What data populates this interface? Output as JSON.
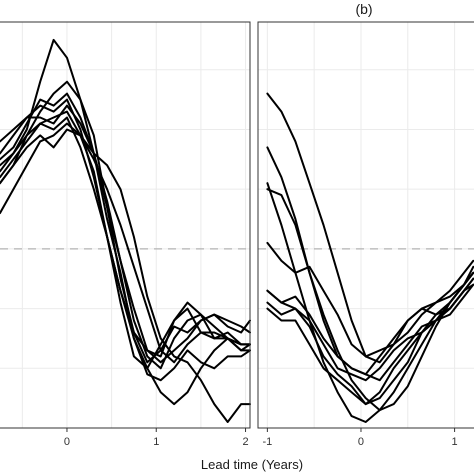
{
  "chart_data": [
    {
      "type": "line",
      "panel_label": "",
      "xlabel": "",
      "x_ticks": [
        0,
        1,
        2
      ],
      "x_tick_labels": [
        "0",
        "1",
        "2"
      ],
      "xlim": [
        -0.75,
        2.05
      ],
      "ylim": [
        -1.5,
        1.9
      ],
      "y_ticks": [],
      "grid": true,
      "reference_line_y": 0,
      "series": [
        {
          "x": [
            -0.75,
            -0.6,
            -0.45,
            -0.3,
            -0.15,
            0,
            0.15,
            0.3,
            0.45,
            0.6,
            0.75,
            0.9,
            1.05,
            1.2,
            1.35,
            1.5,
            1.65,
            1.8,
            1.95,
            2.05
          ],
          "y": [
            0.55,
            0.7,
            0.95,
            1.15,
            1.3,
            1.4,
            1.25,
            0.95,
            0.35,
            -0.25,
            -0.7,
            -0.95,
            -0.85,
            -0.65,
            -0.7,
            -0.6,
            -0.55,
            -0.65,
            -0.7,
            -0.6
          ]
        },
        {
          "x": [
            -0.75,
            -0.6,
            -0.45,
            -0.3,
            -0.15,
            0,
            0.15,
            0.3,
            0.45,
            0.6,
            0.75,
            0.9,
            1.05,
            1.2,
            1.35,
            1.5,
            1.65,
            1.8,
            1.95,
            2.05
          ],
          "y": [
            0.7,
            0.8,
            1.0,
            1.4,
            1.75,
            1.6,
            1.25,
            0.8,
            0.25,
            -0.2,
            -0.75,
            -1.05,
            -1.1,
            -1.0,
            -0.85,
            -0.95,
            -1.0,
            -0.9,
            -0.9,
            -0.85
          ]
        },
        {
          "x": [
            -0.75,
            -0.6,
            -0.45,
            -0.3,
            -0.15,
            0,
            0.15,
            0.3,
            0.45,
            0.6,
            0.75,
            0.9,
            1.05,
            1.2,
            1.35,
            1.5,
            1.65,
            1.8,
            1.95,
            2.05
          ],
          "y": [
            0.75,
            0.85,
            1.05,
            1.25,
            1.2,
            1.3,
            1.1,
            0.8,
            0.35,
            -0.1,
            -0.5,
            -0.85,
            -0.9,
            -0.6,
            -0.45,
            -0.55,
            -0.75,
            -0.7,
            -0.8,
            -0.8
          ]
        },
        {
          "x": [
            -0.75,
            -0.6,
            -0.45,
            -0.3,
            -0.15,
            0,
            0.15,
            0.3,
            0.45,
            0.6,
            0.75,
            0.9,
            1.05,
            1.2,
            1.35,
            1.5,
            1.65,
            1.8,
            1.95,
            2.05
          ],
          "y": [
            0.8,
            0.95,
            1.1,
            1.2,
            1.15,
            1.25,
            1.0,
            0.6,
            0.1,
            -0.45,
            -0.9,
            -1.0,
            -0.8,
            -0.6,
            -0.5,
            -0.7,
            -0.75,
            -0.75,
            -0.85,
            -0.8
          ]
        },
        {
          "x": [
            -0.75,
            -0.6,
            -0.45,
            -0.3,
            -0.15,
            0,
            0.15,
            0.3,
            0.45,
            0.6,
            0.75,
            0.9,
            1.05,
            1.2,
            1.35,
            1.5,
            1.65,
            1.8,
            1.95,
            2.05
          ],
          "y": [
            0.65,
            0.8,
            0.95,
            1.05,
            1.0,
            1.1,
            0.85,
            0.5,
            0.1,
            -0.35,
            -0.75,
            -1.0,
            -1.2,
            -1.3,
            -1.2,
            -1.0,
            -0.85,
            -0.75,
            -0.8,
            -0.8
          ]
        },
        {
          "x": [
            -0.75,
            -0.6,
            -0.45,
            -0.3,
            -0.15,
            0,
            0.15,
            0.3,
            0.45,
            0.6,
            0.75,
            0.9,
            1.05,
            1.2,
            1.35,
            1.5,
            1.65,
            1.8,
            1.95,
            2.05
          ],
          "y": [
            0.3,
            0.5,
            0.7,
            0.9,
            0.95,
            1.05,
            0.95,
            0.75,
            0.5,
            0.2,
            -0.15,
            -0.5,
            -0.85,
            -0.95,
            -0.8,
            -0.7,
            -0.7,
            -0.75,
            -0.8,
            -0.8
          ]
        },
        {
          "x": [
            -0.75,
            -0.6,
            -0.45,
            -0.3,
            -0.15,
            0,
            0.15,
            0.3,
            0.45,
            0.6,
            0.75,
            0.9,
            1.05,
            1.2,
            1.35,
            1.5,
            1.65,
            1.8,
            1.95,
            2.05
          ],
          "y": [
            0.6,
            0.75,
            0.9,
            1.05,
            1.1,
            1.15,
            0.95,
            0.65,
            0.1,
            -0.35,
            -0.7,
            -0.85,
            -0.95,
            -0.85,
            -0.75,
            -0.6,
            -0.55,
            -0.6,
            -0.65,
            -0.7
          ]
        },
        {
          "x": [
            -0.75,
            -0.6,
            -0.45,
            -0.3,
            -0.15,
            0,
            0.15,
            0.3,
            0.45,
            0.6,
            0.75,
            0.9,
            1.05,
            1.2,
            1.35,
            1.5,
            1.65,
            1.8,
            1.95,
            2.05
          ],
          "y": [
            0.55,
            0.7,
            0.85,
            0.95,
            0.85,
            1.0,
            0.95,
            0.8,
            0.7,
            0.5,
            0.1,
            -0.4,
            -0.75,
            -0.9,
            -0.95,
            -1.1,
            -1.3,
            -1.45,
            -1.3,
            -1.3
          ]
        },
        {
          "x": [
            -0.75,
            -0.6,
            -0.45,
            -0.3,
            -0.15,
            0,
            0.15,
            0.3,
            0.45,
            0.6,
            0.75,
            0.9,
            1.05,
            1.2,
            1.35,
            1.5,
            1.65,
            1.8,
            1.95,
            2.05
          ],
          "y": [
            0.9,
            1.0,
            1.1,
            1.1,
            1.05,
            1.2,
            1.05,
            0.8,
            0.4,
            -0.1,
            -0.6,
            -0.9,
            -1.0,
            -0.75,
            -0.6,
            -0.55,
            -0.65,
            -0.75,
            -0.85,
            -0.85
          ]
        }
      ]
    },
    {
      "type": "line",
      "panel_label": "(b)",
      "xlabel": "Lead time (Years)",
      "x_ticks": [
        -1,
        0,
        1
      ],
      "x_tick_labels": [
        "-1",
        "0",
        "1"
      ],
      "xlim": [
        -1.1,
        1.25
      ],
      "ylim": [
        -1.5,
        1.9
      ],
      "y_ticks": [],
      "grid": true,
      "reference_line_y": 0,
      "series": [
        {
          "x": [
            -1,
            -0.85,
            -0.7,
            -0.55,
            -0.4,
            -0.25,
            -0.1,
            0.05,
            0.2,
            0.35,
            0.5,
            0.65,
            0.8,
            0.95,
            1.1,
            1.2
          ],
          "y": [
            1.3,
            1.15,
            0.9,
            0.55,
            0.2,
            -0.2,
            -0.6,
            -0.9,
            -0.95,
            -0.8,
            -0.6,
            -0.5,
            -0.45,
            -0.35,
            -0.2,
            -0.1
          ]
        },
        {
          "x": [
            -1,
            -0.85,
            -0.7,
            -0.55,
            -0.4,
            -0.25,
            -0.1,
            0.05,
            0.2,
            0.35,
            0.5,
            0.65,
            0.8,
            0.95,
            1.1,
            1.2
          ],
          "y": [
            0.5,
            0.45,
            0.2,
            -0.2,
            -0.6,
            -0.9,
            -1.0,
            -1.05,
            -0.9,
            -0.75,
            -0.6,
            -0.5,
            -0.55,
            -0.5,
            -0.35,
            -0.3
          ]
        },
        {
          "x": [
            -1,
            -0.85,
            -0.7,
            -0.55,
            -0.4,
            -0.25,
            -0.1,
            0.05,
            0.2,
            0.35,
            0.5,
            0.65,
            0.8,
            0.95,
            1.1,
            1.2
          ],
          "y": [
            0.05,
            -0.1,
            -0.2,
            -0.15,
            -0.35,
            -0.55,
            -0.8,
            -0.9,
            -0.85,
            -0.8,
            -0.7,
            -0.55,
            -0.45,
            -0.4,
            -0.3,
            -0.2
          ]
        },
        {
          "x": [
            -1,
            -0.85,
            -0.7,
            -0.55,
            -0.4,
            -0.25,
            -0.1,
            0.05,
            0.2,
            0.35,
            0.5,
            0.65,
            0.8,
            0.95,
            1.1,
            1.2
          ],
          "y": [
            -0.35,
            -0.45,
            -0.5,
            -0.6,
            -0.8,
            -1.0,
            -1.05,
            -1.1,
            -1.0,
            -0.85,
            -0.75,
            -0.7,
            -0.6,
            -0.5,
            -0.35,
            -0.25
          ]
        },
        {
          "x": [
            -1,
            -0.85,
            -0.7,
            -0.55,
            -0.4,
            -0.25,
            -0.1,
            0.05,
            0.2,
            0.35,
            0.5,
            0.65,
            0.8,
            0.95,
            1.1,
            1.2
          ],
          "y": [
            -0.45,
            -0.55,
            -0.5,
            -0.65,
            -0.9,
            -1.05,
            -1.15,
            -1.3,
            -1.25,
            -1.1,
            -0.95,
            -0.7,
            -0.55,
            -0.45,
            -0.3,
            -0.2
          ]
        },
        {
          "x": [
            -1,
            -0.85,
            -0.7,
            -0.55,
            -0.4,
            -0.25,
            -0.1,
            0.05,
            0.2,
            0.35,
            0.5,
            0.65,
            0.8,
            0.95,
            1.1,
            1.2
          ],
          "y": [
            -0.5,
            -0.6,
            -0.6,
            -0.8,
            -1.0,
            -1.1,
            -1.2,
            -1.3,
            -1.2,
            -1.0,
            -0.85,
            -0.7,
            -0.6,
            -0.5,
            -0.35,
            -0.25
          ]
        },
        {
          "x": [
            -1,
            -0.85,
            -0.7,
            -0.55,
            -0.4,
            -0.25,
            -0.1,
            0.05,
            0.2,
            0.35,
            0.5,
            0.65,
            0.8,
            0.95,
            1.1,
            1.2
          ],
          "y": [
            -0.35,
            -0.45,
            -0.4,
            -0.55,
            -0.75,
            -0.9,
            -1.0,
            -1.05,
            -1.1,
            -0.95,
            -0.8,
            -0.65,
            -0.6,
            -0.55,
            -0.4,
            -0.3
          ]
        },
        {
          "x": [
            -1,
            -0.85,
            -0.7,
            -0.55,
            -0.4,
            -0.25,
            -0.1,
            0.05,
            0.2,
            0.35,
            0.5,
            0.65,
            0.8,
            0.95,
            1.1,
            1.2
          ],
          "y": [
            0.85,
            0.6,
            0.25,
            -0.2,
            -0.55,
            -0.85,
            -1.1,
            -1.25,
            -1.35,
            -1.3,
            -1.15,
            -0.9,
            -0.65,
            -0.45,
            -0.3,
            -0.15
          ]
        },
        {
          "x": [
            -1,
            -0.85,
            -0.7,
            -0.55,
            -0.4,
            -0.25,
            -0.1,
            0.05,
            0.2,
            0.35,
            0.5,
            0.65,
            0.8,
            0.95,
            1.1,
            1.2
          ],
          "y": [
            0.55,
            0.2,
            -0.2,
            -0.6,
            -0.95,
            -1.2,
            -1.4,
            -1.45,
            -1.35,
            -1.2,
            -1.0,
            -0.8,
            -0.6,
            -0.45,
            -0.3,
            -0.2
          ]
        }
      ]
    }
  ]
}
